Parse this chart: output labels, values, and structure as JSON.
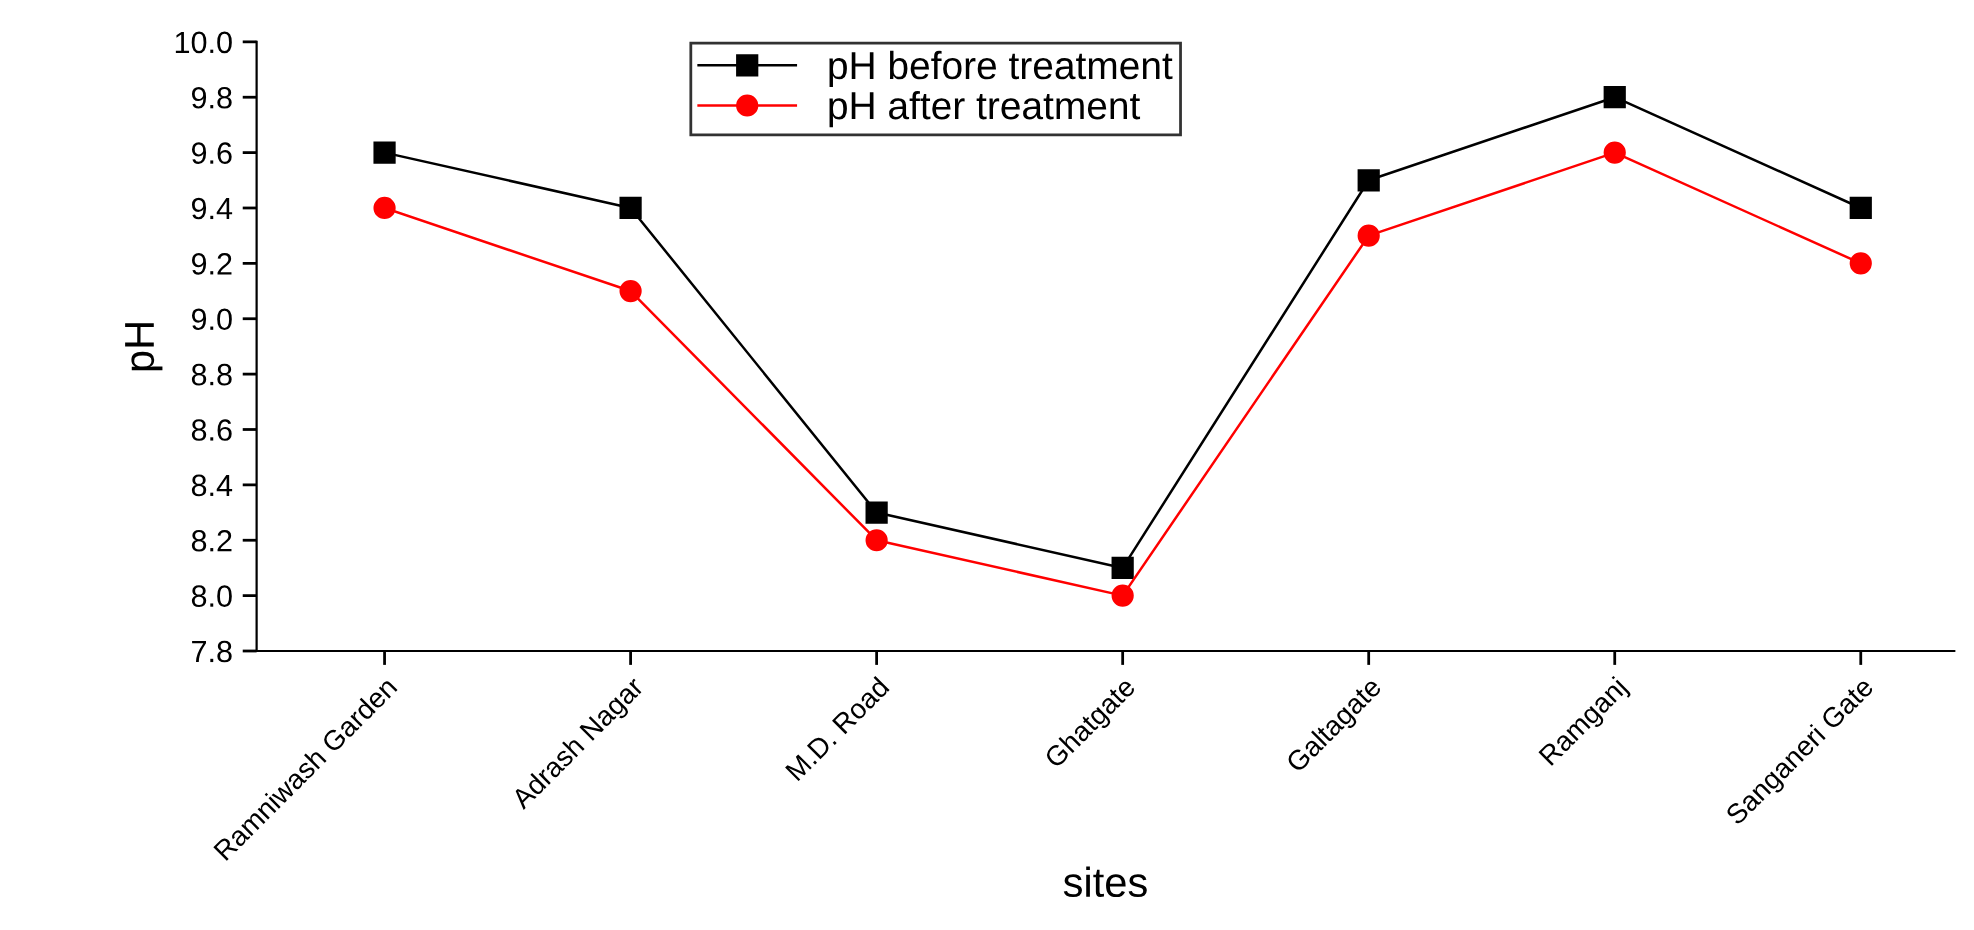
{
  "chart_data": {
    "type": "line",
    "xlabel": "sites",
    "ylabel": "pH",
    "categories": [
      "Ramniwash Garden",
      "Adrash Nagar",
      "M.D. Road",
      "Ghatgate",
      "Galtagate",
      "Ramganj",
      "Sanganeri Gate"
    ],
    "series": [
      {
        "name": "pH before treatment",
        "color": "#000000",
        "marker": "square",
        "values": [
          9.6,
          9.4,
          8.3,
          8.1,
          9.5,
          9.8,
          9.4
        ]
      },
      {
        "name": "pH after treatment",
        "color": "#ff0000",
        "marker": "circle",
        "values": [
          9.4,
          9.1,
          8.2,
          8.0,
          9.3,
          9.6,
          9.2
        ]
      }
    ],
    "ylim": [
      7.8,
      10.0
    ],
    "yticks": [
      {
        "value": 7.8,
        "label": "7.8"
      },
      {
        "value": 8.0,
        "label": "8.0"
      },
      {
        "value": 8.2,
        "label": "8.2"
      },
      {
        "value": 8.4,
        "label": "8.4"
      },
      {
        "value": 8.6,
        "label": "8.6"
      },
      {
        "value": 8.8,
        "label": "8.8"
      },
      {
        "value": 9.0,
        "label": "9.0"
      },
      {
        "value": 9.2,
        "label": "9.2"
      },
      {
        "value": 9.4,
        "label": "9.4"
      },
      {
        "value": 9.6,
        "label": "9.6"
      },
      {
        "value": 9.8,
        "label": "9.8"
      },
      {
        "value": 10.0,
        "label": "10.0"
      }
    ],
    "grid": false,
    "legend": "top",
    "line_style": "solid"
  }
}
